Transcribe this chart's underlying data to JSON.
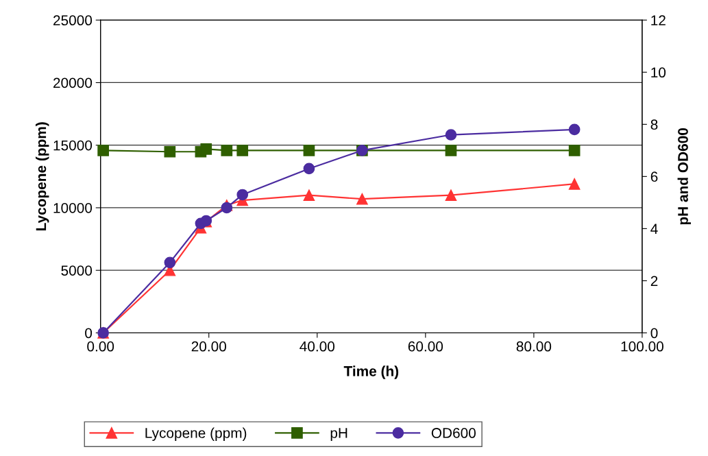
{
  "chart_data": {
    "type": "line",
    "xlabel": "Time (h)",
    "ylabel": "Lycopene (ppm)",
    "y2label": "pH and OD600",
    "x": [
      0.5,
      12.8,
      18.5,
      19.5,
      23.3,
      26.2,
      38.5,
      48.3,
      64.7,
      87.5
    ],
    "series": [
      {
        "name": "Lycopene (ppm)",
        "color": "#ff3333",
        "marker": "triangle",
        "values": [
          0,
          5000,
          8400,
          8900,
          10200,
          10600,
          11000,
          10700,
          11000,
          11900
        ]
      },
      {
        "name": "pH",
        "color": "#2f5f00",
        "marker": "square",
        "axis": "y2",
        "values": [
          7.0,
          6.95,
          6.95,
          7.05,
          7.0,
          7.0,
          7.0,
          7.0,
          7.0,
          7.0
        ]
      },
      {
        "name": "OD600",
        "color": "#4b2ca0",
        "marker": "circle",
        "axis": "y2",
        "values": [
          0,
          2.7,
          4.2,
          4.3,
          4.8,
          5.3,
          6.3,
          7.0,
          7.6,
          7.8
        ]
      }
    ],
    "xlim": [
      0,
      100
    ],
    "xticks": [
      {
        "value": 0,
        "label": "0.00"
      },
      {
        "value": 20,
        "label": "20.00"
      },
      {
        "value": 40,
        "label": "40.00"
      },
      {
        "value": 60,
        "label": "60.00"
      },
      {
        "value": 80,
        "label": "80.00"
      },
      {
        "value": 100,
        "label": "100.00"
      }
    ],
    "ylim": [
      0,
      25000
    ],
    "yticks": [
      0,
      5000,
      10000,
      15000,
      20000,
      25000
    ],
    "y2lim": [
      0,
      12
    ],
    "y2ticks": [
      0,
      2,
      4,
      6,
      8,
      10,
      12
    ],
    "grid": "y",
    "legend": "bottom",
    "line_style": "solid"
  }
}
